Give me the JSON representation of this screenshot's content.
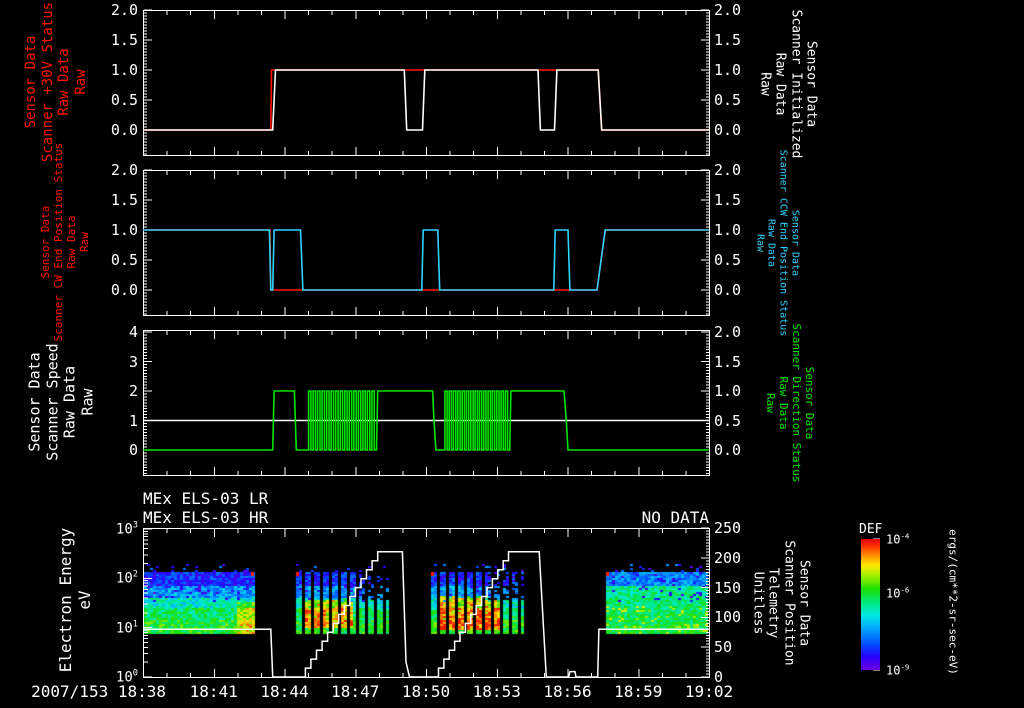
{
  "colors": {
    "red": "#ff1200",
    "white": "#ffffff",
    "cyan": "#2fd4ff",
    "green": "#00e400",
    "axis": "#ffffff",
    "background": "#000000"
  },
  "x_axis": {
    "first_label": "2007/153 18:38",
    "labels": [
      "18:41",
      "18:44",
      "18:47",
      "18:50",
      "18:53",
      "18:56",
      "18:59",
      "19:02"
    ],
    "minutes_total": 24,
    "major_every_min": 3,
    "minor_every_min": 1
  },
  "chart_data": [
    {
      "type": "line",
      "name": "scanner-power-panel",
      "left_label": "Sensor Data\nScanner +30V Status\nRaw Data\nRaw",
      "left_label_color": "red",
      "right_label": "Sensor Data\nScanner Initialized\nRaw Data\nRaw",
      "right_label_color": "white",
      "yticks_left": [
        "2.0",
        "1.5",
        "1.0",
        "0.5",
        "0.0"
      ],
      "ytick_vals": [
        2,
        1.5,
        1,
        0.5,
        0
      ],
      "yticks_right": [
        "2.0",
        "1.5",
        "1.0",
        "0.5",
        "0.0"
      ],
      "series": [
        {
          "name": "scanner-plus-30v-status-raw",
          "color": "red",
          "axis": "left",
          "points": [
            [
              0,
              0
            ],
            [
              5.42,
              0
            ],
            [
              5.45,
              1
            ],
            [
              19.3,
              1
            ],
            [
              19.45,
              0
            ],
            [
              24,
              0
            ]
          ]
        },
        {
          "name": "scanner-initialized-raw",
          "color": "white",
          "axis": "left",
          "points": [
            [
              0,
              0
            ],
            [
              5.5,
              0
            ],
            [
              5.62,
              1
            ],
            [
              11.08,
              1
            ],
            [
              11.18,
              0
            ],
            [
              11.85,
              0
            ],
            [
              11.95,
              1
            ],
            [
              16.75,
              1
            ],
            [
              16.85,
              0
            ],
            [
              17.45,
              0
            ],
            [
              17.55,
              1
            ],
            [
              19.3,
              1
            ],
            [
              19.45,
              0
            ],
            [
              24,
              0
            ]
          ]
        }
      ]
    },
    {
      "type": "line",
      "name": "scanner-end-position-panel",
      "left_label": "Sensor Data\nScanner CW End Position Status\nRaw Data\nRaw",
      "left_label_color": "red",
      "right_label": "Sensor Data\nScanner CCW End Position Status\nRaw Data\nRaw",
      "right_label_color": "cyan",
      "yticks_left": [
        "2.0",
        "1.5",
        "1.0",
        "0.5",
        "0.0"
      ],
      "ytick_vals": [
        2,
        1.5,
        1,
        0.5,
        0
      ],
      "yticks_right": [
        "2.0",
        "1.5",
        "1.0",
        "0.5",
        "0.0"
      ],
      "series": [
        {
          "name": "scanner-cw-end-position-status-raw",
          "color": "red",
          "axis": "left",
          "points": [
            [
              0,
              1
            ],
            [
              5.38,
              1
            ],
            [
              5.42,
              0
            ],
            [
              19.25,
              0
            ],
            [
              19.6,
              1
            ],
            [
              24,
              1
            ]
          ]
        },
        {
          "name": "scanner-ccw-end-position-status-raw",
          "color": "cyan",
          "axis": "left",
          "points": [
            [
              0,
              1
            ],
            [
              5.36,
              1
            ],
            [
              5.42,
              0
            ],
            [
              5.5,
              0
            ],
            [
              5.56,
              1
            ],
            [
              6.68,
              1
            ],
            [
              6.78,
              0
            ],
            [
              11.82,
              0
            ],
            [
              11.88,
              1
            ],
            [
              12.5,
              1
            ],
            [
              12.58,
              0
            ],
            [
              17.42,
              0
            ],
            [
              17.48,
              1
            ],
            [
              18.02,
              1
            ],
            [
              18.1,
              0
            ],
            [
              19.25,
              0
            ],
            [
              19.6,
              1
            ],
            [
              24,
              1
            ]
          ]
        }
      ]
    },
    {
      "type": "line",
      "name": "scanner-speed-direction-panel",
      "left_label": "Sensor Data\nScanner Speed\nRaw Data\nRaw",
      "left_label_color": "white",
      "right_label": "Sensor Data\nScanner Direction Status\nRaw Data\nRaw",
      "right_label_color": "green",
      "yticks_left": [
        "4",
        "3",
        "2",
        "1",
        "0"
      ],
      "ytick_vals_left": [
        4,
        3,
        2,
        1,
        0
      ],
      "yticks_right": [
        "2.0",
        "1.5",
        "1.0",
        "0.5",
        "0.0"
      ],
      "ytick_vals_right": [
        2,
        1.5,
        1,
        0.5,
        0
      ],
      "series": [
        {
          "name": "scanner-speed-raw",
          "color": "white",
          "axis": "left",
          "points": [
            [
              0,
              1
            ],
            [
              24,
              1
            ]
          ]
        },
        {
          "name": "scanner-direction-status-raw",
          "color": "green",
          "axis": "right",
          "points": [
            [
              0,
              0
            ],
            [
              5.5,
              0
            ],
            [
              5.56,
              1
            ],
            [
              6.42,
              1
            ],
            [
              6.5,
              0
            ],
            [
              7.02,
              0
            ],
            {
              "burst": [
                7.02,
                9.9,
                15
              ]
            },
            [
              9.9,
              0
            ],
            [
              9.95,
              1
            ],
            [
              12.28,
              1
            ],
            [
              12.34,
              0.5
            ],
            [
              12.42,
              0
            ],
            [
              12.8,
              0
            ],
            {
              "burst": [
                12.8,
                15.55,
                15
              ]
            },
            [
              15.55,
              0
            ],
            [
              15.6,
              1
            ],
            [
              17.85,
              1
            ],
            [
              17.95,
              0.5
            ],
            [
              18.02,
              0
            ],
            [
              24,
              0
            ]
          ]
        }
      ]
    },
    {
      "type": "spectrogram",
      "name": "electron-energy-spectrogram",
      "title_lr": "MEx ELS-03 LR",
      "title_hr": "MEx ELS-03 HR",
      "no_data": "NO DATA",
      "left_label": "Electron Energy\neV",
      "left_label_color": "white",
      "right_label": "Sensor Data\nScanner Position\nTelemetry\nUnitless",
      "right_label_color": "white",
      "ytick_exps_left": [
        3,
        2,
        1,
        0
      ],
      "yticks_right": [
        "250",
        "200",
        "150",
        "100",
        "50",
        "0"
      ],
      "ytick_vals_right": [
        250,
        200,
        150,
        100,
        50,
        0
      ],
      "energy_range_ev": [
        8,
        140
      ],
      "blocks": [
        {
          "t0": 0.05,
          "t1": 4.75,
          "striped": false,
          "flat": false,
          "hot": {
            "t0": 3.9,
            "t1": 4.7,
            "e0": 8,
            "e1": 35,
            "boost": 0.22
          }
        },
        {
          "t0": 6.5,
          "t1": 10.4,
          "striped": true,
          "flat": false,
          "hot": {
            "t0": 6.7,
            "t1": 8.9,
            "e0": 10,
            "e1": 40,
            "boost": 0.34
          }
        },
        {
          "t0": 12.2,
          "t1": 16.1,
          "striped": true,
          "flat": false,
          "hot": {
            "t0": 12.4,
            "t1": 15.2,
            "e0": 9,
            "e1": 45,
            "boost": 0.38
          }
        },
        {
          "t0": 19.65,
          "t1": 24,
          "striped": false,
          "flat": true,
          "hot": null
        }
      ],
      "overlay": {
        "name": "scanner-position-telemetry",
        "color": "white",
        "points": [
          [
            0,
            80
          ],
          [
            5.42,
            80
          ],
          [
            5.5,
            0
          ],
          [
            6.65,
            0
          ],
          {
            "ramp": [
              6.65,
              9.95,
              0,
              210,
              14
            ]
          },
          [
            9.95,
            210
          ],
          [
            11.0,
            210
          ],
          [
            11.15,
            25
          ],
          [
            11.3,
            0
          ],
          [
            12.3,
            0
          ],
          {
            "ramp": [
              12.3,
              15.5,
              0,
              210,
              14
            ]
          },
          [
            15.5,
            210
          ],
          [
            16.8,
            210
          ],
          [
            17.1,
            0
          ],
          [
            18.05,
            0
          ],
          [
            18.1,
            9
          ],
          [
            18.32,
            9
          ],
          [
            18.36,
            0
          ],
          [
            19.28,
            0
          ],
          [
            19.33,
            80
          ],
          [
            24,
            80
          ]
        ]
      }
    }
  ],
  "colorbar": {
    "title": "DEF",
    "unit": "ergs/(cm**2-sr-sec-eV)",
    "tick_exps": [
      -4,
      -6,
      -9
    ],
    "tick_pos": [
      0,
      0.41,
      1
    ],
    "decades": 5,
    "top_color": "#ff0000",
    "bottom_color": "#8000ff"
  }
}
